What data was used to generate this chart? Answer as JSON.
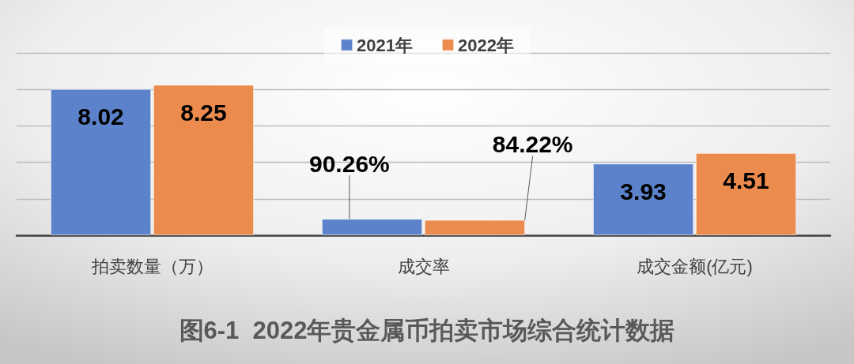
{
  "chart_data": {
    "type": "bar",
    "title": "图6-1  2022年贵金属币拍卖市场综合统计数据",
    "categories": [
      "拍卖数量（万）",
      "成交率",
      "成交金额(亿元)"
    ],
    "series": [
      {
        "name": "2021年",
        "color": "#5b82ca",
        "values": [
          8.02,
          0.9026,
          3.93
        ],
        "value_labels": [
          "8.02",
          "90.26%",
          "3.93"
        ]
      },
      {
        "name": "2022年",
        "color": "#eb8b4d",
        "values": [
          8.25,
          0.8422,
          4.51
        ],
        "value_labels": [
          "8.25",
          "84.22%",
          "4.51"
        ]
      }
    ],
    "ylim": [
      0,
      10
    ],
    "yticks": [
      0,
      2,
      4,
      6,
      8,
      10
    ],
    "grid": "y",
    "legend": "top",
    "tick_labels": "x"
  }
}
